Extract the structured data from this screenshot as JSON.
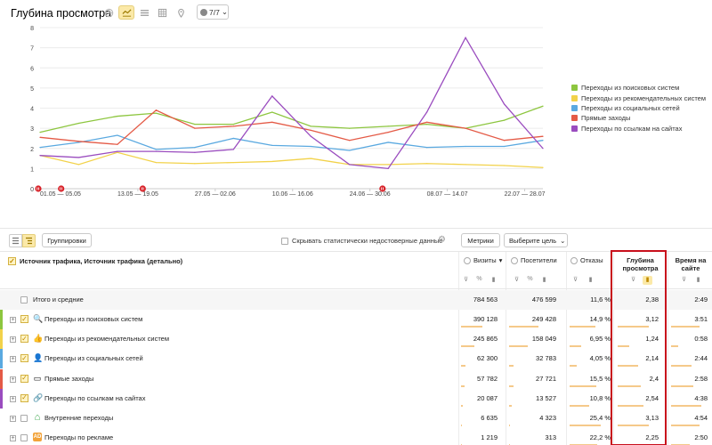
{
  "page_title": "Глубина просмотра",
  "toolbar": {
    "tools": [
      {
        "name": "pie-chart-icon",
        "active": false
      },
      {
        "name": "line-chart-icon",
        "active": true
      },
      {
        "name": "area-chart-icon",
        "active": false
      },
      {
        "name": "bar-chart-icon",
        "active": false
      },
      {
        "name": "map-pin-icon",
        "active": false
      }
    ],
    "series_selector": "7/7"
  },
  "chart_data": {
    "type": "line",
    "x": [
      "01.05",
      "08.05",
      "15.05",
      "22.05",
      "29.05",
      "05.06",
      "12.06",
      "19.06",
      "26.06",
      "03.07",
      "10.07",
      "17.07",
      "24.07",
      "31.07"
    ],
    "x_tick_labels": [
      "01.05 — 05.05",
      "13.05 — 19.05",
      "27.05 — 02.06",
      "10.06 — 16.06",
      "24.06 — 30.06",
      "08.07 — 14.07",
      "22.07 — 28.07"
    ],
    "ylim": [
      0,
      8
    ],
    "yticks": [
      0,
      1,
      2,
      3,
      4,
      5,
      6,
      7,
      8
    ],
    "grid": true,
    "legend_position": "right",
    "series": [
      {
        "name": "Переходы из поисковых систем",
        "color": "#8dc63f",
        "values": [
          2.8,
          3.25,
          3.6,
          3.75,
          3.2,
          3.2,
          3.8,
          3.1,
          3.0,
          3.1,
          3.2,
          3.0,
          3.4,
          4.1
        ]
      },
      {
        "name": "Переходы из рекомендательных систем",
        "color": "#f2d24a",
        "values": [
          1.65,
          1.2,
          1.8,
          1.3,
          1.25,
          1.3,
          1.35,
          1.5,
          1.2,
          1.2,
          1.25,
          1.2,
          1.15,
          1.05
        ]
      },
      {
        "name": "Переходы из социальных сетей",
        "color": "#5aa9e0",
        "values": [
          2.05,
          2.3,
          2.65,
          1.95,
          2.05,
          2.5,
          2.15,
          2.1,
          1.9,
          2.3,
          2.05,
          2.1,
          2.1,
          2.4
        ]
      },
      {
        "name": "Прямые заходы",
        "color": "#e45a46",
        "values": [
          2.55,
          2.35,
          2.2,
          3.9,
          3.0,
          3.1,
          3.3,
          2.9,
          2.4,
          2.8,
          3.3,
          3.0,
          2.4,
          2.6
        ]
      },
      {
        "name": "Переходы по ссылкам на сайтах",
        "color": "#9a4cbf",
        "values": [
          1.65,
          1.55,
          1.85,
          1.85,
          1.8,
          1.95,
          4.6,
          2.6,
          1.2,
          1.0,
          3.8,
          7.5,
          4.2,
          2.0
        ]
      }
    ],
    "annotation_markers": 4
  },
  "controls": {
    "groupings_button": "Группировки",
    "hide_unreliable_label": "Скрывать статистически недостоверные данные",
    "metrics_button": "Метрики",
    "goal_select": "Выберите цель"
  },
  "table": {
    "dimension_header": "Источник трафика, Источник трафика (детально)",
    "columns": [
      {
        "key": "visits",
        "label": "Визиты",
        "sort": "▾"
      },
      {
        "key": "visitors",
        "label": "Посетители"
      },
      {
        "key": "bounce",
        "label": "Отказы"
      },
      {
        "key": "depth",
        "label": "Глубина просмотра"
      },
      {
        "key": "time",
        "label": "Время на сайте"
      }
    ],
    "totals": {
      "label": "Итого и средние",
      "visits": "784 563",
      "visitors": "476 599",
      "bounce": "11,6 %",
      "depth": "2,38",
      "time": "2:49"
    },
    "rows": [
      {
        "label": "Переходы из поисковых систем",
        "color": "#8dc63f",
        "icon": "search-icon",
        "glyph": "🔍",
        "checked": true,
        "visits": "390 128",
        "visitors": "249 428",
        "bounce": "14,9 %",
        "depth": "3,12",
        "time": "3:51",
        "bars": [
          0.52,
          0.55,
          0.66,
          0.72,
          0.75
        ]
      },
      {
        "label": "Переходы из рекомендательных систем",
        "color": "#f2d24a",
        "icon": "thumbs-up-icon",
        "glyph": "👍",
        "checked": true,
        "visits": "245 865",
        "visitors": "158 049",
        "bounce": "6,95 %",
        "depth": "1,24",
        "time": "0:58",
        "bars": [
          0.33,
          0.35,
          0.3,
          0.28,
          0.2
        ]
      },
      {
        "label": "Переходы из социальных сетей",
        "color": "#5aa9e0",
        "icon": "person-icon",
        "glyph": "👤",
        "checked": true,
        "visits": "62 300",
        "visitors": "32 783",
        "bounce": "4,05 %",
        "depth": "2,14",
        "time": "2:44",
        "bars": [
          0.1,
          0.09,
          0.18,
          0.48,
          0.55
        ]
      },
      {
        "label": "Прямые заходы",
        "color": "#e45a46",
        "icon": "direct-icon",
        "glyph": "▭",
        "checked": true,
        "visits": "57 782",
        "visitors": "27 721",
        "bounce": "15,5 %",
        "depth": "2,4",
        "time": "2:58",
        "bars": [
          0.08,
          0.08,
          0.68,
          0.55,
          0.6
        ]
      },
      {
        "label": "Переходы по ссылкам на сайтах",
        "color": "#9a4cbf",
        "icon": "link-icon",
        "glyph": "🔗",
        "checked": true,
        "visits": "20 087",
        "visitors": "13 527",
        "bounce": "10,8 %",
        "depth": "2,54",
        "time": "4:38",
        "bars": [
          0.05,
          0.05,
          0.5,
          0.6,
          0.8
        ]
      },
      {
        "label": "Внутренние переходы",
        "color": "",
        "icon": "home-icon",
        "glyph": "⌂",
        "checked": false,
        "visits": "6 635",
        "visitors": "4 323",
        "bounce": "25,4 %",
        "depth": "3,13",
        "time": "4:54",
        "bars": [
          0.02,
          0.02,
          0.8,
          0.72,
          0.75
        ]
      },
      {
        "label": "Переходы по рекламе",
        "color": "",
        "icon": "ad-icon",
        "glyph": "AD",
        "checked": false,
        "visits": "1 219",
        "visitors": "313",
        "bounce": "22,2 %",
        "depth": "2,25",
        "time": "2:50",
        "bars": [
          0.01,
          0.01,
          0.7,
          0.56,
          0.5
        ]
      }
    ]
  }
}
